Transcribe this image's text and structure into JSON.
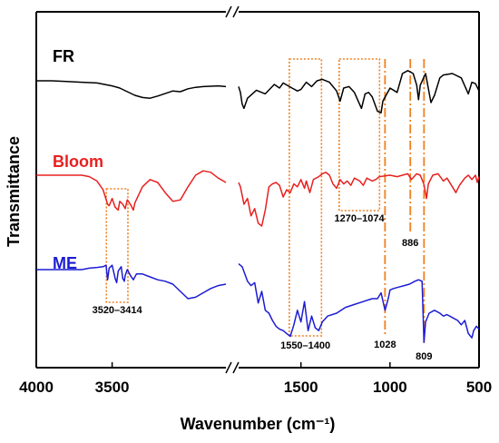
{
  "chart_data": {
    "type": "line",
    "title": "",
    "xlabel": "Wavenumber (cm⁻¹)",
    "ylabel": "Transmittance",
    "axis_break": [
      2750,
      1850
    ],
    "xlim": [
      4000,
      500
    ],
    "x_ticks": [
      "4000",
      "3500",
      "1500",
      "1000",
      "500"
    ],
    "y_ticks_shown": false,
    "series": [
      {
        "name": "FR",
        "color": "#000000",
        "points": [
          [
            4000,
            0.0
          ],
          [
            3900,
            0.0
          ],
          [
            3800,
            -0.5
          ],
          [
            3700,
            -1.0
          ],
          [
            3600,
            -1.5
          ],
          [
            3500,
            -3.5
          ],
          [
            3450,
            -5.0
          ],
          [
            3400,
            -7.5
          ],
          [
            3350,
            -10.0
          ],
          [
            3300,
            -11.5
          ],
          [
            3250,
            -12.0
          ],
          [
            3200,
            -10.5
          ],
          [
            3100,
            -7.0
          ],
          [
            3050,
            -7.5
          ],
          [
            3000,
            -5.5
          ],
          [
            2950,
            -4.5
          ],
          [
            2900,
            -4.0
          ],
          [
            2800,
            -3.5
          ],
          [
            2750,
            -4.0
          ],
          [
            1850,
            -4.0
          ],
          [
            1840,
            -8.0
          ],
          [
            1830,
            -16.0
          ],
          [
            1820,
            -19.0
          ],
          [
            1800,
            -12.0
          ],
          [
            1750,
            -6.5
          ],
          [
            1700,
            -9.0
          ],
          [
            1650,
            -2.5
          ],
          [
            1620,
            -5.0
          ],
          [
            1600,
            -1.5
          ],
          [
            1550,
            -5.0
          ],
          [
            1520,
            -7.0
          ],
          [
            1500,
            -6.0
          ],
          [
            1470,
            -1.0
          ],
          [
            1440,
            -4.0
          ],
          [
            1410,
            0.0
          ],
          [
            1380,
            1.0
          ],
          [
            1340,
            -1.0
          ],
          [
            1300,
            -7.0
          ],
          [
            1280,
            -14.0
          ],
          [
            1260,
            -5.0
          ],
          [
            1230,
            -4.0
          ],
          [
            1200,
            -8.0
          ],
          [
            1160,
            -19.0
          ],
          [
            1140,
            -9.0
          ],
          [
            1120,
            -8.0
          ],
          [
            1100,
            -11.0
          ],
          [
            1070,
            -21.0
          ],
          [
            1050,
            -22.0
          ],
          [
            1040,
            -14.0
          ],
          [
            1000,
            -5.0
          ],
          [
            960,
            -8.0
          ],
          [
            930,
            5.0
          ],
          [
            900,
            7.0
          ],
          [
            870,
            5.0
          ],
          [
            850,
            -3.0
          ],
          [
            840,
            -13.0
          ],
          [
            830,
            -3.0
          ],
          [
            800,
            5.0
          ],
          [
            770,
            -15.0
          ],
          [
            750,
            -10.0
          ],
          [
            720,
            2.0
          ],
          [
            700,
            4.0
          ],
          [
            650,
            5.0
          ],
          [
            600,
            2.0
          ],
          [
            560,
            -9.0
          ],
          [
            540,
            -1.0
          ],
          [
            520,
            -2.0
          ],
          [
            500,
            -7.0
          ]
        ]
      },
      {
        "name": "Bloom",
        "color": "#e82020",
        "points": [
          [
            4000,
            0.0
          ],
          [
            3700,
            0.0
          ],
          [
            3650,
            -1.0
          ],
          [
            3600,
            -4.0
          ],
          [
            3560,
            -10.0
          ],
          [
            3530,
            -20.0
          ],
          [
            3520,
            -21.0
          ],
          [
            3500,
            -16.0
          ],
          [
            3480,
            -22.0
          ],
          [
            3460,
            -24.0
          ],
          [
            3450,
            -18.0
          ],
          [
            3430,
            -20.0
          ],
          [
            3414,
            -23.0
          ],
          [
            3400,
            -17.0
          ],
          [
            3380,
            -20.0
          ],
          [
            3360,
            -24.0
          ],
          [
            3350,
            -19.0
          ],
          [
            3300,
            -8.0
          ],
          [
            3250,
            -3.0
          ],
          [
            3200,
            -5.0
          ],
          [
            3150,
            -12.0
          ],
          [
            3100,
            -18.0
          ],
          [
            3050,
            -17.0
          ],
          [
            3000,
            -8.0
          ],
          [
            2950,
            0.0
          ],
          [
            2900,
            3.0
          ],
          [
            2850,
            2.0
          ],
          [
            2800,
            -2.0
          ],
          [
            2750,
            -5.0
          ],
          [
            1850,
            -5.0
          ],
          [
            1840,
            -8.0
          ],
          [
            1820,
            -20.0
          ],
          [
            1800,
            -16.0
          ],
          [
            1780,
            -28.0
          ],
          [
            1760,
            -23.0
          ],
          [
            1740,
            -33.0
          ],
          [
            1720,
            -35.0
          ],
          [
            1700,
            -24.0
          ],
          [
            1680,
            -8.0
          ],
          [
            1660,
            -6.0
          ],
          [
            1640,
            -5.0
          ],
          [
            1620,
            -7.0
          ],
          [
            1600,
            -15.0
          ],
          [
            1580,
            -10.0
          ],
          [
            1560,
            -12.0
          ],
          [
            1540,
            -6.0
          ],
          [
            1520,
            -8.0
          ],
          [
            1500,
            -3.0
          ],
          [
            1480,
            -9.0
          ],
          [
            1470,
            -4.0
          ],
          [
            1450,
            -12.0
          ],
          [
            1430,
            -3.0
          ],
          [
            1400,
            -1.0
          ],
          [
            1380,
            1.0
          ],
          [
            1360,
            2.0
          ],
          [
            1340,
            0.0
          ],
          [
            1320,
            -6.0
          ],
          [
            1300,
            -9.0
          ],
          [
            1280,
            -3.0
          ],
          [
            1260,
            -6.0
          ],
          [
            1240,
            -4.0
          ],
          [
            1220,
            -7.0
          ],
          [
            1200,
            -2.0
          ],
          [
            1170,
            -4.0
          ],
          [
            1150,
            -7.0
          ],
          [
            1130,
            -2.0
          ],
          [
            1100,
            -4.0
          ],
          [
            1080,
            -3.0
          ],
          [
            1060,
            -1.0
          ],
          [
            1000,
            0.0
          ],
          [
            960,
            -1.0
          ],
          [
            930,
            0.0
          ],
          [
            900,
            1.0
          ],
          [
            880,
            -3.0
          ],
          [
            850,
            1.0
          ],
          [
            830,
            0.0
          ],
          [
            810,
            -6.0
          ],
          [
            795,
            -16.0
          ],
          [
            785,
            -6.0
          ],
          [
            760,
            0.0
          ],
          [
            730,
            1.0
          ],
          [
            700,
            -4.0
          ],
          [
            680,
            -2.0
          ],
          [
            650,
            -8.0
          ],
          [
            630,
            -12.0
          ],
          [
            610,
            -7.0
          ],
          [
            580,
            -2.0
          ],
          [
            560,
            0.0
          ],
          [
            540,
            -3.0
          ],
          [
            520,
            0.0
          ],
          [
            510,
            -5.0
          ],
          [
            500,
            -1.0
          ]
        ]
      },
      {
        "name": "ME",
        "color": "#1c1cd4",
        "points": [
          [
            4000,
            0.0
          ],
          [
            3700,
            0.0
          ],
          [
            3650,
            1.0
          ],
          [
            3600,
            1.5
          ],
          [
            3560,
            2.0
          ],
          [
            3540,
            3.0
          ],
          [
            3530,
            -7.0
          ],
          [
            3520,
            1.0
          ],
          [
            3500,
            3.0
          ],
          [
            3480,
            -6.0
          ],
          [
            3470,
            -9.0
          ],
          [
            3460,
            -1.0
          ],
          [
            3440,
            2.0
          ],
          [
            3430,
            -6.0
          ],
          [
            3420,
            -8.0
          ],
          [
            3414,
            -4.0
          ],
          [
            3400,
            0.0
          ],
          [
            3380,
            -4.0
          ],
          [
            3360,
            -7.0
          ],
          [
            3340,
            -3.0
          ],
          [
            3300,
            -3.0
          ],
          [
            3250,
            -5.0
          ],
          [
            3200,
            -7.0
          ],
          [
            3150,
            -8.0
          ],
          [
            3100,
            -10.0
          ],
          [
            3050,
            -15.0
          ],
          [
            3000,
            -20.0
          ],
          [
            2950,
            -19.0
          ],
          [
            2900,
            -16.0
          ],
          [
            2850,
            -13.0
          ],
          [
            2800,
            -11.0
          ],
          [
            2750,
            -10.0
          ],
          [
            1850,
            4.0
          ],
          [
            1830,
            2.0
          ],
          [
            1800,
            -8.0
          ],
          [
            1780,
            -11.0
          ],
          [
            1760,
            -9.0
          ],
          [
            1740,
            -23.0
          ],
          [
            1720,
            -15.0
          ],
          [
            1700,
            -28.0
          ],
          [
            1680,
            -30.0
          ],
          [
            1660,
            -35.0
          ],
          [
            1640,
            -39.0
          ],
          [
            1620,
            -41.0
          ],
          [
            1600,
            -42.0
          ],
          [
            1580,
            -44.0
          ],
          [
            1560,
            -46.0
          ],
          [
            1540,
            -38.0
          ],
          [
            1520,
            -28.0
          ],
          [
            1500,
            -36.0
          ],
          [
            1480,
            -22.0
          ],
          [
            1460,
            -42.0
          ],
          [
            1440,
            -32.0
          ],
          [
            1420,
            -40.0
          ],
          [
            1400,
            -42.0
          ],
          [
            1380,
            -36.0
          ],
          [
            1350,
            -32.0
          ],
          [
            1300,
            -30.0
          ],
          [
            1250,
            -26.0
          ],
          [
            1200,
            -24.0
          ],
          [
            1150,
            -22.0
          ],
          [
            1100,
            -20.0
          ],
          [
            1070,
            -20.0
          ],
          [
            1050,
            -16.0
          ],
          [
            1028,
            -28.0
          ],
          [
            1010,
            -20.0
          ],
          [
            1000,
            -14.0
          ],
          [
            980,
            -13.0
          ],
          [
            950,
            -12.0
          ],
          [
            920,
            -11.0
          ],
          [
            890,
            -10.0
          ],
          [
            860,
            -8.0
          ],
          [
            840,
            -7.0
          ],
          [
            820,
            -8.0
          ],
          [
            809,
            -50.0
          ],
          [
            800,
            -36.0
          ],
          [
            780,
            -30.0
          ],
          [
            750,
            -28.0
          ],
          [
            720,
            -30.0
          ],
          [
            700,
            -32.0
          ],
          [
            680,
            -31.0
          ],
          [
            650,
            -33.0
          ],
          [
            620,
            -35.0
          ],
          [
            600,
            -38.0
          ],
          [
            580,
            -35.0
          ],
          [
            560,
            -44.0
          ],
          [
            540,
            -47.0
          ],
          [
            530,
            -42.0
          ],
          [
            515,
            -39.0
          ],
          [
            500,
            -41.0
          ]
        ]
      }
    ],
    "annotations": [
      {
        "label": "3520–3414",
        "range": [
          3520,
          3414
        ]
      },
      {
        "label": "1550–1400",
        "range": [
          1550,
          1400
        ]
      },
      {
        "label": "1270–1074",
        "range": [
          1270,
          1074
        ]
      },
      {
        "label": "1028",
        "at": 1028
      },
      {
        "label": "886",
        "at": 886
      },
      {
        "label": "809",
        "at": 809
      }
    ],
    "grid": false,
    "legend": "none"
  },
  "colors": {
    "annotation": "#f08020"
  }
}
